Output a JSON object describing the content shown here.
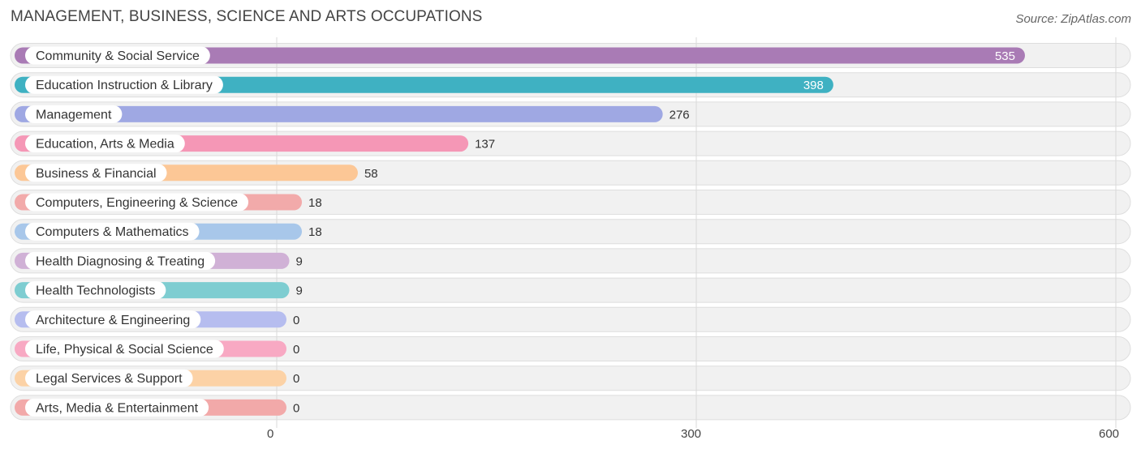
{
  "header": {
    "title": "MANAGEMENT, BUSINESS, SCIENCE AND ARTS OCCUPATIONS",
    "source": "Source: ZipAtlas.com"
  },
  "chart_data": {
    "type": "bar",
    "orientation": "horizontal",
    "title": "MANAGEMENT, BUSINESS, SCIENCE AND ARTS OCCUPATIONS",
    "xlabel": "",
    "ylabel": "",
    "xlim": [
      0,
      600
    ],
    "ticks": [
      0,
      300,
      600
    ],
    "tick_labels": [
      "0",
      "300",
      "600"
    ],
    "grid": true,
    "categories": [
      "Community & Social Service",
      "Education Instruction & Library",
      "Management",
      "Education, Arts & Media",
      "Business & Financial",
      "Computers, Engineering & Science",
      "Computers & Mathematics",
      "Health Diagnosing & Treating",
      "Health Technologists",
      "Architecture & Engineering",
      "Life, Physical & Social Science",
      "Legal Services & Support",
      "Arts, Media & Entertainment"
    ],
    "values": [
      535,
      398,
      276,
      137,
      58,
      18,
      18,
      9,
      9,
      0,
      0,
      0,
      0
    ],
    "value_labels": [
      "535",
      "398",
      "276",
      "137",
      "58",
      "18",
      "18",
      "9",
      "9",
      "0",
      "0",
      "0",
      "0"
    ],
    "colors": [
      "#a97bb5",
      "#3fb1c2",
      "#9fa8e3",
      "#f597b6",
      "#fcc796",
      "#f2aaaa",
      "#a8c7ea",
      "#d0b1d6",
      "#7ecdd1",
      "#b6bdef",
      "#f8a9c3",
      "#fcd2a6",
      "#f2a9a9"
    ]
  }
}
